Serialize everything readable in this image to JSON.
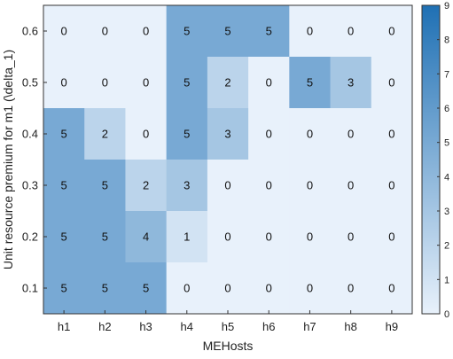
{
  "chart_data": {
    "type": "heatmap",
    "title": "",
    "xlabel": "MEHosts",
    "ylabel": "Unit resource premium for m1 (\\delta_1)",
    "x_categories": [
      "h1",
      "h2",
      "h3",
      "h4",
      "h5",
      "h6",
      "h7",
      "h8",
      "h9"
    ],
    "y_categories": [
      "0.6",
      "0.5",
      "0.4",
      "0.3",
      "0.2",
      "0.1"
    ],
    "values": [
      [
        0,
        0,
        0,
        5,
        5,
        5,
        0,
        0,
        0
      ],
      [
        0,
        0,
        0,
        5,
        2,
        0,
        5,
        3,
        0
      ],
      [
        5,
        2,
        0,
        5,
        3,
        0,
        0,
        0,
        0
      ],
      [
        5,
        5,
        2,
        3,
        0,
        0,
        0,
        0,
        0
      ],
      [
        5,
        5,
        4,
        1,
        0,
        0,
        0,
        0,
        0
      ],
      [
        5,
        5,
        5,
        0,
        0,
        0,
        0,
        0,
        0
      ]
    ],
    "colorbar": {
      "min": 0,
      "max": 9,
      "ticks": [
        "0",
        "1",
        "2",
        "3",
        "4",
        "5",
        "6",
        "7",
        "8",
        "9"
      ],
      "low_color": "#e8f1fb",
      "high_color": "#1f70b4"
    },
    "grid": false,
    "legend": "colorbar-right"
  }
}
